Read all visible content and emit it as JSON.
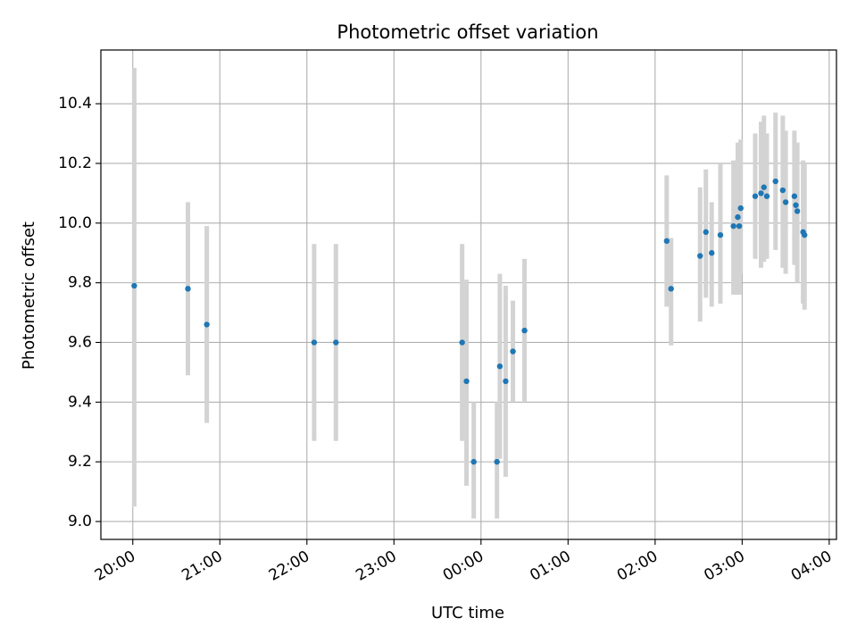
{
  "chart_data": {
    "type": "scatter",
    "title": "Photometric offset variation",
    "xlabel": "UTC time",
    "ylabel": "Photometric offset",
    "xlim": [
      "19:38",
      "04:05"
    ],
    "ylim": [
      8.94,
      10.58
    ],
    "xticks": [
      "20:00",
      "21:00",
      "22:00",
      "23:00",
      "00:00",
      "01:00",
      "02:00",
      "03:00",
      "04:00"
    ],
    "yticks": [
      "9.0",
      "9.2",
      "9.4",
      "9.6",
      "9.8",
      "10.0",
      "10.2",
      "10.4"
    ],
    "grid": true,
    "colors": {
      "point": "#1f77b4",
      "errorbar": "#d3d3d3",
      "grid": "#b0b0b0"
    },
    "series": [
      {
        "points": [
          {
            "x": "20:01",
            "y": 9.79,
            "yerr": [
              9.05,
              10.52
            ]
          },
          {
            "x": "20:38",
            "y": 9.78,
            "yerr": [
              9.49,
              10.07
            ]
          },
          {
            "x": "20:51",
            "y": 9.66,
            "yerr": [
              9.33,
              9.99
            ]
          },
          {
            "x": "22:05",
            "y": 9.6,
            "yerr": [
              9.27,
              9.93
            ]
          },
          {
            "x": "22:20",
            "y": 9.6,
            "yerr": [
              9.27,
              9.93
            ]
          },
          {
            "x": "23:47",
            "y": 9.6,
            "yerr": [
              9.27,
              9.93
            ]
          },
          {
            "x": "23:50",
            "y": 9.47,
            "yerr": [
              9.12,
              9.81
            ]
          },
          {
            "x": "23:55",
            "y": 9.2,
            "yerr": [
              9.01,
              9.4
            ]
          },
          {
            "x": "00:11",
            "y": 9.2,
            "yerr": [
              9.01,
              9.4
            ]
          },
          {
            "x": "00:13",
            "y": 9.52,
            "yerr": [
              9.21,
              9.83
            ]
          },
          {
            "x": "00:17",
            "y": 9.47,
            "yerr": [
              9.15,
              9.79
            ]
          },
          {
            "x": "00:22",
            "y": 9.57,
            "yerr": [
              9.4,
              9.74
            ]
          },
          {
            "x": "00:30",
            "y": 9.64,
            "yerr": [
              9.4,
              9.88
            ]
          },
          {
            "x": "02:08",
            "y": 9.94,
            "yerr": [
              9.72,
              10.16
            ]
          },
          {
            "x": "02:11",
            "y": 9.78,
            "yerr": [
              9.59,
              9.95
            ]
          },
          {
            "x": "02:31",
            "y": 9.89,
            "yerr": [
              9.67,
              10.12
            ]
          },
          {
            "x": "02:35",
            "y": 9.97,
            "yerr": [
              9.75,
              10.18
            ]
          },
          {
            "x": "02:39",
            "y": 9.9,
            "yerr": [
              9.72,
              10.07
            ]
          },
          {
            "x": "02:45",
            "y": 9.96,
            "yerr": [
              9.73,
              10.2
            ]
          },
          {
            "x": "02:54",
            "y": 9.99,
            "yerr": [
              9.76,
              10.21
            ]
          },
          {
            "x": "02:57",
            "y": 10.02,
            "yerr": [
              9.76,
              10.27
            ]
          },
          {
            "x": "02:58",
            "y": 9.99,
            "yerr": [
              9.76,
              10.21
            ]
          },
          {
            "x": "02:59",
            "y": 10.05,
            "yerr": [
              9.83,
              10.28
            ]
          },
          {
            "x": "03:09",
            "y": 10.09,
            "yerr": [
              9.88,
              10.3
            ]
          },
          {
            "x": "03:13",
            "y": 10.1,
            "yerr": [
              9.85,
              10.34
            ]
          },
          {
            "x": "03:15",
            "y": 10.12,
            "yerr": [
              9.87,
              10.36
            ]
          },
          {
            "x": "03:17",
            "y": 10.09,
            "yerr": [
              9.88,
              10.3
            ]
          },
          {
            "x": "03:23",
            "y": 10.14,
            "yerr": [
              9.91,
              10.37
            ]
          },
          {
            "x": "03:28",
            "y": 10.11,
            "yerr": [
              9.85,
              10.36
            ]
          },
          {
            "x": "03:30",
            "y": 10.07,
            "yerr": [
              9.83,
              10.31
            ]
          },
          {
            "x": "03:36",
            "y": 10.09,
            "yerr": [
              9.86,
              10.31
            ]
          },
          {
            "x": "03:37",
            "y": 10.06,
            "yerr": [
              9.86,
              10.26
            ]
          },
          {
            "x": "03:38",
            "y": 10.04,
            "yerr": [
              9.8,
              10.27
            ]
          },
          {
            "x": "03:42",
            "y": 9.97,
            "yerr": [
              9.73,
              10.21
            ]
          },
          {
            "x": "03:43",
            "y": 9.96,
            "yerr": [
              9.71,
              10.2
            ]
          }
        ]
      }
    ]
  }
}
